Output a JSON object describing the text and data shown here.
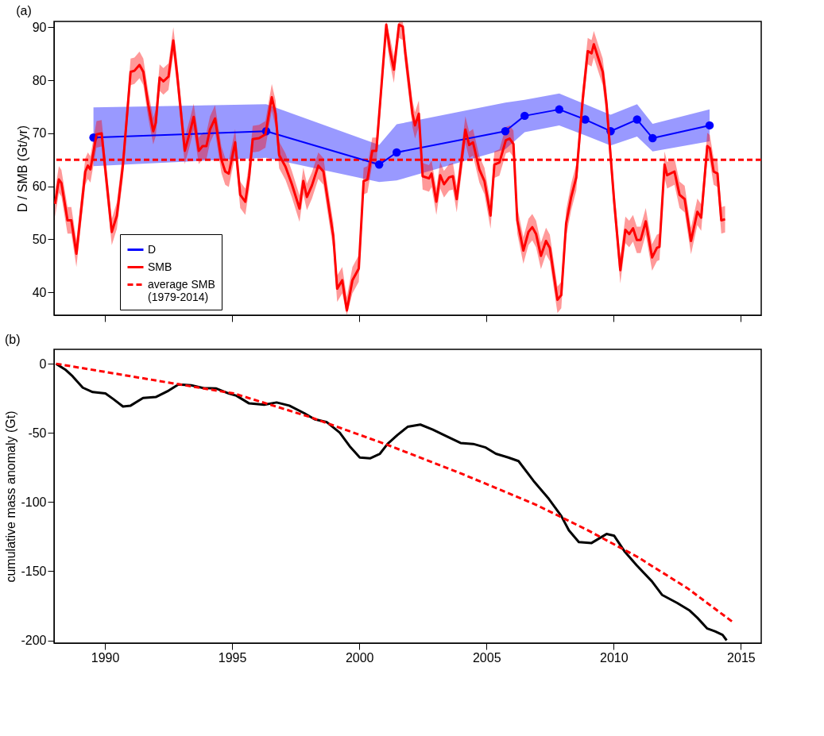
{
  "chart_data": [
    {
      "type": "line",
      "title": "(a)",
      "ylabel": "D / SMB (Gt/yr)",
      "xlim": [
        1988.0,
        2015.8
      ],
      "ylim": [
        35.7,
        91.1
      ],
      "xticks": [
        1990,
        1995,
        2000,
        2005,
        2010,
        2015
      ],
      "yticks": [
        40,
        50,
        60,
        70,
        80,
        90
      ],
      "tick_labels": "y",
      "grid": false,
      "legend": "bottom left",
      "series": [
        {
          "name": "D",
          "color": "#0000ff",
          "marker": "circle",
          "x": [
            1989.55,
            1996.34,
            2000.78,
            2001.47,
            2005.74,
            2006.5,
            2007.86,
            2008.88,
            2009.88,
            2010.92,
            2011.53,
            2013.77
          ],
          "values": [
            69.2,
            70.4,
            64.1,
            66.4,
            70.4,
            73.3,
            74.5,
            72.6,
            70.4,
            72.6,
            69.1,
            71.5
          ],
          "lower": [
            63.8,
            65.4,
            60.8,
            61.1,
            67.0,
            70.2,
            71.5,
            69.6,
            67.7,
            69.4,
            66.6,
            68.5
          ],
          "upper": [
            74.9,
            75.5,
            67.8,
            71.7,
            75.8,
            76.3,
            77.5,
            75.5,
            73.5,
            75.5,
            71.8,
            74.5
          ]
        },
        {
          "name": "SMB",
          "color": "#ff0000",
          "x": [
            1988.04,
            1988.19,
            1988.29,
            1988.53,
            1988.68,
            1988.88,
            1989.23,
            1989.33,
            1989.43,
            1989.67,
            1989.87,
            1990.27,
            1990.47,
            1990.71,
            1991.01,
            1991.16,
            1991.36,
            1991.51,
            1991.7,
            1991.9,
            1992.0,
            1992.15,
            1992.3,
            1992.5,
            1992.69,
            1992.84,
            1993.14,
            1993.34,
            1993.49,
            1993.69,
            1993.84,
            1993.99,
            1994.13,
            1994.33,
            1994.58,
            1994.73,
            1994.87,
            1995.12,
            1995.32,
            1995.52,
            1995.67,
            1995.81,
            1996.06,
            1996.31,
            1996.56,
            1996.71,
            1996.85,
            1997.1,
            1997.35,
            1997.65,
            1997.8,
            1997.94,
            1998.14,
            1998.39,
            1998.59,
            1998.84,
            1998.98,
            1999.13,
            1999.33,
            1999.51,
            1999.73,
            1999.98,
            2000.17,
            2000.32,
            2000.51,
            2000.67,
            2001.06,
            2001.21,
            2001.36,
            2001.56,
            2001.71,
            2001.8,
            2002.09,
            2002.19,
            2002.34,
            2002.49,
            2002.74,
            2002.84,
            2003.03,
            2003.18,
            2003.33,
            2003.53,
            2003.68,
            2003.83,
            2004.17,
            2004.32,
            2004.47,
            2004.72,
            2004.92,
            2005.16,
            2005.31,
            2005.51,
            2005.76,
            2005.91,
            2006.06,
            2006.21,
            2006.45,
            2006.65,
            2006.8,
            2006.95,
            2007.14,
            2007.34,
            2007.49,
            2007.79,
            2007.94,
            2008.13,
            2008.33,
            2008.53,
            2008.78,
            2008.98,
            2009.13,
            2009.22,
            2009.42,
            2009.57,
            2009.72,
            2010.02,
            2010.26,
            2010.46,
            2010.61,
            2010.76,
            2010.91,
            2011.06,
            2011.26,
            2011.51,
            2011.7,
            2011.8,
            2012.0,
            2012.1,
            2012.39,
            2012.59,
            2012.79,
            2013.04,
            2013.29,
            2013.44,
            2013.68,
            2013.78,
            2013.93,
            2014.08,
            2014.23,
            2014.38
          ],
          "values": [
            56.7,
            61.3,
            60.6,
            53.6,
            53.6,
            47.3,
            62.8,
            63.9,
            63.2,
            69.8,
            70.0,
            51.4,
            54.5,
            64.1,
            81.6,
            81.8,
            82.9,
            81.6,
            75.5,
            70.4,
            72.0,
            80.5,
            79.8,
            80.7,
            87.5,
            81.1,
            66.7,
            70.2,
            73.1,
            66.7,
            67.6,
            67.6,
            70.7,
            72.8,
            65.0,
            62.8,
            62.4,
            68.3,
            58.4,
            57.1,
            61.9,
            68.9,
            69.1,
            69.8,
            76.8,
            73.7,
            65.9,
            63.7,
            60.4,
            55.8,
            61.0,
            58.0,
            60.2,
            63.9,
            62.8,
            54.9,
            50.6,
            40.7,
            42.3,
            36.6,
            42.3,
            44.5,
            61.0,
            61.3,
            66.7,
            66.7,
            90.5,
            85.5,
            82.0,
            90.5,
            90.1,
            85.5,
            73.7,
            71.5,
            73.7,
            61.9,
            61.5,
            62.4,
            57.1,
            62.1,
            60.4,
            61.7,
            61.9,
            57.6,
            70.7,
            67.8,
            68.3,
            63.2,
            61.0,
            54.5,
            64.1,
            64.5,
            68.7,
            69.0,
            68.0,
            53.6,
            47.9,
            51.4,
            52.3,
            51.0,
            46.9,
            49.7,
            48.4,
            38.6,
            39.5,
            53.0,
            58.0,
            61.7,
            76.3,
            85.5,
            85.1,
            86.8,
            83.8,
            81.6,
            75.5,
            57.1,
            44.2,
            51.8,
            51.0,
            52.1,
            49.9,
            49.9,
            53.4,
            46.6,
            48.4,
            48.6,
            64.1,
            62.1,
            62.8,
            58.4,
            57.6,
            49.7,
            55.2,
            54.1,
            67.6,
            67.2,
            62.8,
            62.4,
            53.6,
            53.8
          ],
          "lower": [
            54.2,
            58.8,
            58.1,
            51.1,
            51.1,
            44.8,
            60.3,
            61.4,
            60.7,
            67.3,
            67.5,
            48.9,
            52.0,
            61.6,
            79.1,
            79.3,
            80.4,
            79.1,
            73.0,
            67.9,
            69.5,
            78.0,
            77.3,
            78.2,
            85.0,
            78.6,
            64.2,
            67.7,
            70.6,
            64.2,
            65.1,
            65.1,
            68.2,
            70.3,
            62.5,
            60.3,
            59.9,
            65.8,
            55.9,
            54.6,
            59.4,
            66.4,
            66.6,
            67.3,
            74.3,
            71.2,
            63.4,
            61.2,
            57.9,
            53.3,
            58.5,
            55.5,
            57.7,
            61.4,
            60.3,
            52.4,
            48.1,
            38.2,
            39.8,
            35.7,
            39.8,
            42.0,
            58.5,
            58.8,
            64.2,
            64.2,
            88.0,
            83.0,
            79.5,
            88.0,
            87.6,
            83.0,
            71.2,
            69.0,
            71.2,
            59.4,
            59.0,
            59.9,
            54.6,
            59.6,
            57.9,
            59.2,
            59.4,
            55.1,
            68.2,
            65.3,
            65.8,
            60.7,
            58.5,
            52.0,
            61.6,
            62.0,
            66.2,
            66.5,
            65.5,
            51.1,
            45.4,
            48.9,
            49.8,
            48.5,
            44.4,
            47.2,
            45.9,
            36.1,
            37.0,
            50.5,
            55.5,
            59.2,
            73.8,
            83.0,
            82.6,
            84.3,
            81.3,
            79.1,
            73.0,
            54.6,
            41.7,
            49.3,
            48.5,
            49.6,
            47.4,
            47.4,
            50.9,
            44.1,
            45.9,
            46.1,
            61.6,
            59.6,
            60.3,
            55.9,
            55.1,
            47.2,
            52.7,
            51.6,
            65.1,
            64.7,
            60.3,
            59.9,
            51.1,
            51.3
          ],
          "upper": [
            59.2,
            63.8,
            63.1,
            56.1,
            56.1,
            49.8,
            65.3,
            66.4,
            65.7,
            72.3,
            72.5,
            53.9,
            57.0,
            66.6,
            84.1,
            84.3,
            85.4,
            84.1,
            78.0,
            72.9,
            74.5,
            83.0,
            82.3,
            83.2,
            90.0,
            83.6,
            69.2,
            72.7,
            75.6,
            69.2,
            70.1,
            70.1,
            73.2,
            75.3,
            67.5,
            65.3,
            64.9,
            70.8,
            60.9,
            59.6,
            64.4,
            71.4,
            71.6,
            72.3,
            79.3,
            76.2,
            68.4,
            66.2,
            62.9,
            58.3,
            63.5,
            60.5,
            62.7,
            66.4,
            65.3,
            57.4,
            53.1,
            43.2,
            44.8,
            39.1,
            44.8,
            47.0,
            63.5,
            63.8,
            69.2,
            69.2,
            91.0,
            88.0,
            84.5,
            91.0,
            91.0,
            88.0,
            76.2,
            74.0,
            76.2,
            64.4,
            64.0,
            64.9,
            59.6,
            64.6,
            62.9,
            64.2,
            64.4,
            60.1,
            73.2,
            70.3,
            70.8,
            65.7,
            63.5,
            57.0,
            66.6,
            67.0,
            71.2,
            71.5,
            70.5,
            56.1,
            50.4,
            53.9,
            54.8,
            53.5,
            49.4,
            52.2,
            50.9,
            41.1,
            42.0,
            55.5,
            60.5,
            64.2,
            78.8,
            88.0,
            87.6,
            89.3,
            86.3,
            84.1,
            78.0,
            59.6,
            46.7,
            54.3,
            53.5,
            54.6,
            52.4,
            52.4,
            55.9,
            49.1,
            50.9,
            51.1,
            66.6,
            64.6,
            65.3,
            60.9,
            60.1,
            52.2,
            57.7,
            56.6,
            70.1,
            69.7,
            65.3,
            64.9,
            56.1,
            56.3
          ]
        }
      ],
      "ref_lines": [
        {
          "axis": "y",
          "value": 65,
          "label": "average SMB (1979-2014)",
          "color": "#ff0000",
          "line_style": "dashed"
        }
      ]
    },
    {
      "type": "line",
      "title": "(b)",
      "ylabel": "cumulative mass anomaly (Gt)",
      "xlim": [
        1988.0,
        2015.8
      ],
      "ylim": [
        -202,
        10.4
      ],
      "xticks": [
        1990,
        1995,
        2000,
        2005,
        2010,
        2015
      ],
      "yticks": [
        -200,
        -150,
        -100,
        -50,
        0
      ],
      "grid": false,
      "legend": false,
      "series": [
        {
          "color": "#000000",
          "x": [
            1988.08,
            1988.44,
            1988.73,
            1989.13,
            1989.52,
            1990.02,
            1990.32,
            1990.71,
            1991.01,
            1991.5,
            1992.0,
            1992.5,
            1992.89,
            1993.39,
            1993.88,
            1994.38,
            1994.87,
            1995.17,
            1995.67,
            1996.26,
            1996.75,
            1997.25,
            1997.84,
            1998.24,
            1998.73,
            1999.23,
            1999.62,
            2000.02,
            2000.42,
            2000.81,
            2001.11,
            2001.5,
            2001.9,
            2002.4,
            2002.89,
            2003.39,
            2003.98,
            2004.48,
            2004.97,
            2005.37,
            2005.86,
            2006.26,
            2006.85,
            2007.45,
            2007.94,
            2008.24,
            2008.63,
            2009.13,
            2009.72,
            2010.02,
            2010.42,
            2010.91,
            2011.5,
            2011.9,
            2012.5,
            2012.99,
            2013.29,
            2013.68,
            2013.98,
            2014.28,
            2014.44
          ],
          "values": [
            0,
            -4.2,
            -9.1,
            -17.3,
            -20.5,
            -21.5,
            -25.4,
            -30.9,
            -30.3,
            -24.8,
            -24.1,
            -19.5,
            -15.0,
            -15.6,
            -17.6,
            -17.9,
            -21.5,
            -23.1,
            -28.7,
            -29.6,
            -28.0,
            -30.3,
            -35.8,
            -40.1,
            -42.3,
            -49.8,
            -59.6,
            -67.8,
            -68.4,
            -65.1,
            -58.0,
            -51.5,
            -45.6,
            -44.0,
            -47.6,
            -52.1,
            -57.3,
            -58.0,
            -60.6,
            -65.1,
            -67.8,
            -70.4,
            -84.7,
            -97.7,
            -110.1,
            -120.5,
            -129.0,
            -129.6,
            -123.1,
            -124.4,
            -135.5,
            -145.9,
            -157.3,
            -167.1,
            -173.0,
            -178.5,
            -183.7,
            -191.5,
            -193.5,
            -196.1,
            -200
          ]
        },
        {
          "color": "#ff0000",
          "line_style": "dashed",
          "x": [
            1988.08,
            1990.0,
            1992.1,
            1995.07,
            1998.04,
            2001.01,
            2003.98,
            2006.95,
            2008.93,
            2010.91,
            2012.89,
            2014.67
          ],
          "values": [
            0,
            -5.9,
            -12.4,
            -21.5,
            -38.4,
            -58.0,
            -79.2,
            -102.0,
            -119.9,
            -139.4,
            -162.2,
            -186.6
          ]
        }
      ]
    }
  ]
}
